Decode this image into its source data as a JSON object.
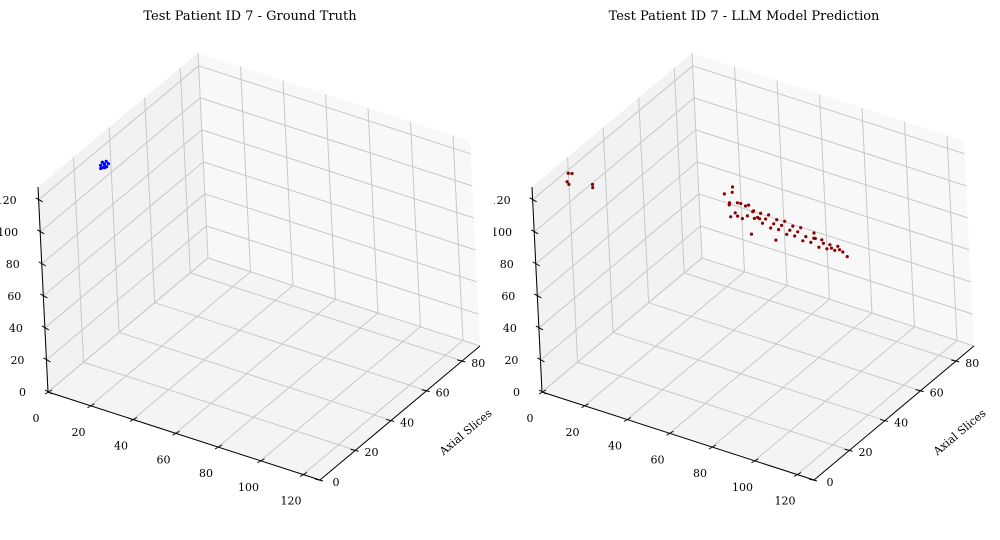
{
  "chart_data": [
    {
      "type": "scatter3d",
      "title": "Test Patient ID 7 - Ground Truth",
      "xlabel": "",
      "ylabel": "Axial Slices",
      "zlabel": "",
      "xlim": [
        0,
        128
      ],
      "ylim": [
        0,
        90
      ],
      "zlim": [
        0,
        128
      ],
      "xticks": [
        "0",
        "20",
        "40",
        "60",
        "80",
        "100",
        "120"
      ],
      "yticks": [
        "0",
        "20",
        "40",
        "60",
        "80"
      ],
      "zticks": [
        "0",
        "20",
        "40",
        "60",
        "80",
        "100",
        "120"
      ],
      "grid": true,
      "series": [
        {
          "color": "#0000ff",
          "points": [
            [
              3,
              31,
              114
            ],
            [
              3,
              32,
              115
            ],
            [
              4,
              31,
              113
            ],
            [
              4,
              32,
              114
            ],
            [
              3,
              33,
              113
            ],
            [
              4,
              33,
              115
            ],
            [
              5,
              32,
              113
            ],
            [
              3,
              31,
              112
            ],
            [
              4,
              32,
              112
            ],
            [
              5,
              33,
              114
            ]
          ]
        }
      ]
    },
    {
      "type": "scatter3d",
      "title": "Test Patient ID 7 - LLM Model Prediction",
      "xlabel": "",
      "ylabel": "Axial Slices",
      "zlabel": "",
      "xlim": [
        0,
        128
      ],
      "ylim": [
        0,
        90
      ],
      "zlim": [
        0,
        128
      ],
      "xticks": [
        "0",
        "20",
        "40",
        "60",
        "80",
        "100",
        "120"
      ],
      "yticks": [
        "0",
        "20",
        "40",
        "60",
        "80"
      ],
      "zticks": [
        "0",
        "20",
        "40",
        "60",
        "80",
        "100",
        "120"
      ],
      "grid": true,
      "series": [
        {
          "color": "#8b0000",
          "points": [
            [
              0,
              20,
              118
            ],
            [
              0,
              22,
              116
            ],
            [
              1,
              18,
              115
            ],
            [
              0,
              20,
              111
            ],
            [
              6,
              26,
              108
            ],
            [
              6,
              26,
              106
            ],
            [
              64,
              36,
              122
            ],
            [
              60,
              36,
              116
            ],
            [
              62,
              38,
              116
            ],
            [
              64,
              34,
              114
            ],
            [
              66,
              36,
              113
            ],
            [
              62,
              36,
              110
            ],
            [
              68,
              38,
              110
            ],
            [
              64,
              40,
              108
            ],
            [
              66,
              42,
              106
            ],
            [
              70,
              40,
              106
            ],
            [
              68,
              36,
              104
            ],
            [
              72,
              38,
              104
            ],
            [
              64,
              38,
              102
            ],
            [
              66,
              44,
              100
            ],
            [
              70,
              42,
              100
            ],
            [
              74,
              40,
              100
            ],
            [
              68,
              46,
              98
            ],
            [
              72,
              44,
              98
            ],
            [
              76,
              42,
              96
            ],
            [
              70,
              48,
              96
            ],
            [
              74,
              46,
              94
            ],
            [
              78,
              44,
              94
            ],
            [
              72,
              50,
              92
            ],
            [
              76,
              48,
              92
            ],
            [
              80,
              46,
              90
            ],
            [
              74,
              52,
              90
            ],
            [
              78,
              50,
              88
            ],
            [
              82,
              48,
              88
            ],
            [
              76,
              54,
              86
            ],
            [
              80,
              52,
              86
            ],
            [
              84,
              50,
              84
            ],
            [
              78,
              56,
              84
            ],
            [
              82,
              54,
              82
            ],
            [
              86,
              52,
              82
            ],
            [
              84,
              56,
              80
            ],
            [
              88,
              54,
              78
            ],
            [
              86,
              58,
              78
            ],
            [
              90,
              56,
              76
            ],
            [
              88,
              60,
              74
            ],
            [
              92,
              58,
              74
            ],
            [
              90,
              62,
              72
            ],
            [
              94,
              60,
              72
            ],
            [
              86,
              54,
              86
            ],
            [
              92,
              52,
              84
            ],
            [
              94,
              54,
              80
            ],
            [
              90,
              50,
              88
            ],
            [
              96,
              56,
              78
            ],
            [
              96,
              60,
              70
            ],
            [
              70,
              30,
              114
            ],
            [
              74,
              32,
              112
            ],
            [
              78,
              34,
              110
            ],
            [
              66,
              32,
              108
            ],
            [
              72,
              36,
              96
            ],
            [
              80,
              40,
              92
            ]
          ]
        }
      ]
    }
  ]
}
